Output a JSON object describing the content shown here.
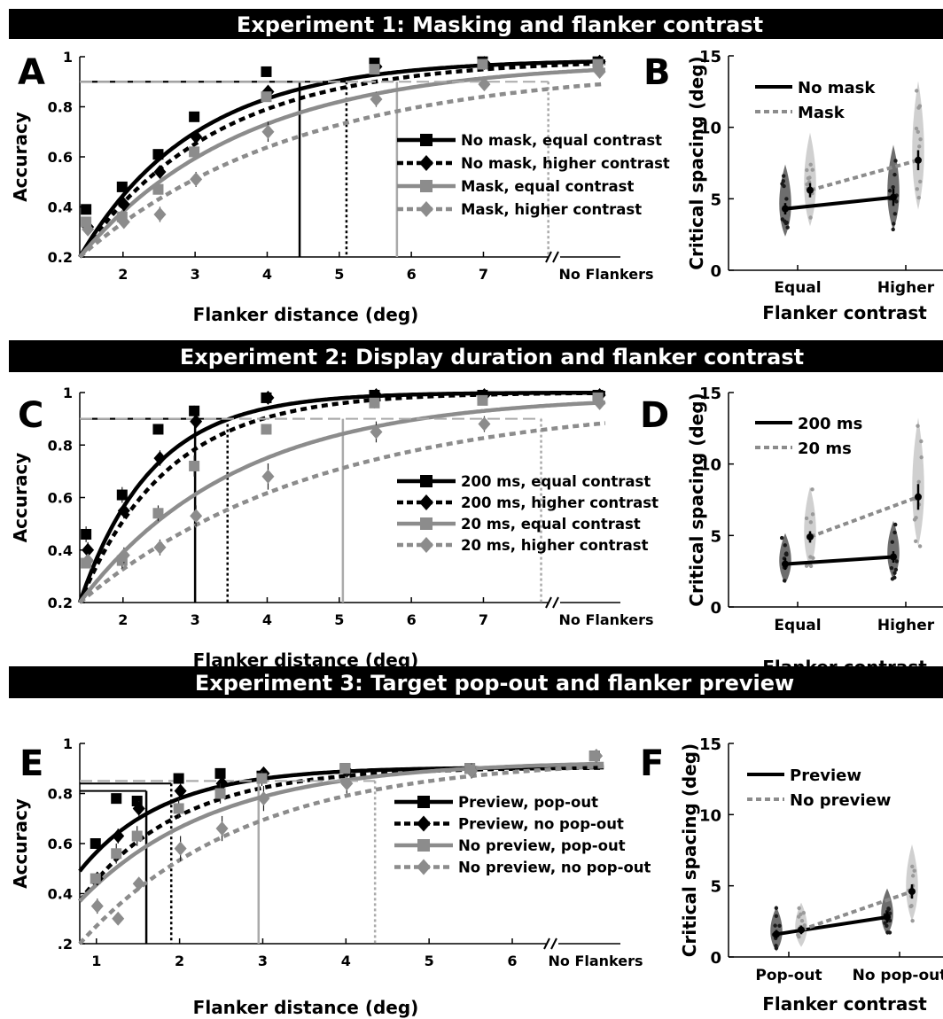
{
  "banners": [
    "Experiment 1: Masking and flanker contrast",
    "Experiment 2: Display duration and flanker contrast",
    "Experiment 3: Target pop-out and flanker preview"
  ],
  "colors": {
    "black": "#000000",
    "gray": "#8c8c8c",
    "gray_light": "#aaaaaa",
    "violin_dark": "#555555",
    "violin_light": "#c8c8c8"
  },
  "chart_data": [
    {
      "panel": "A",
      "type": "line",
      "xlabel": "Flanker distance (deg)",
      "ylabel": "Accuracy",
      "xlim": [
        1.4,
        8.9
      ],
      "ylim": [
        0.2,
        1
      ],
      "xticks": [
        2,
        3,
        4,
        5,
        6,
        7
      ],
      "no_flanker_x": 8.6,
      "no_flanker_label": "No Flankers",
      "yticks": [
        0.2,
        0.4,
        0.6,
        0.8,
        1
      ],
      "ytick_labels": [
        "0.2",
        "0.4",
        "0.6",
        "0.8",
        "1"
      ],
      "threshold": 0.9,
      "series": [
        {
          "name": "No mask, equal contrast",
          "color": "black",
          "dash": false,
          "marker": "square",
          "x": [
            1.5,
            2,
            2.5,
            3,
            4,
            5.5,
            7
          ],
          "y": [
            0.39,
            0.48,
            0.61,
            0.76,
            0.94,
            0.975,
            0.98
          ],
          "err": [
            0.02,
            0.02,
            0.02,
            0.02,
            0.01,
            0.01,
            0.01
          ],
          "nf": 0.98,
          "curve": {
            "a": 0.99,
            "y0": 0.2,
            "k": 0.62
          },
          "cs": 4.45
        },
        {
          "name": "No mask, higher contrast",
          "color": "black",
          "dash": true,
          "marker": "diamond",
          "x": [
            1.5,
            2,
            2.5,
            3,
            4,
            5.5,
            7
          ],
          "y": [
            0.32,
            0.41,
            0.54,
            0.68,
            0.86,
            0.96,
            0.975
          ],
          "err": [
            0.02,
            0.02,
            0.02,
            0.02,
            0.02,
            0.01,
            0.01
          ],
          "nf": 0.98,
          "curve": {
            "a": 0.99,
            "y0": 0.2,
            "k": 0.53
          },
          "cs": 5.1
        },
        {
          "name": "Mask, equal contrast",
          "color": "gray",
          "dash": false,
          "marker": "square",
          "x": [
            1.5,
            2,
            2.5,
            3,
            4,
            5.5,
            7
          ],
          "y": [
            0.34,
            0.36,
            0.47,
            0.62,
            0.84,
            0.95,
            0.97
          ],
          "err": [
            0.02,
            0.02,
            0.02,
            0.02,
            0.02,
            0.01,
            0.01
          ],
          "nf": 0.97,
          "curve": {
            "a": 0.98,
            "y0": 0.2,
            "k": 0.44
          },
          "cs": 5.8
        },
        {
          "name": "Mask, higher contrast",
          "color": "gray",
          "dash": true,
          "marker": "diamond",
          "x": [
            1.5,
            2,
            2.5,
            3,
            4,
            5.5,
            7
          ],
          "y": [
            0.31,
            0.34,
            0.37,
            0.51,
            0.7,
            0.83,
            0.89
          ],
          "err": [
            0.02,
            0.02,
            0.03,
            0.03,
            0.04,
            0.03,
            0.02
          ],
          "nf": 0.94,
          "curve": {
            "a": 0.96,
            "y0": 0.2,
            "k": 0.33
          },
          "cs": 7.9
        }
      ]
    },
    {
      "panel": "B",
      "type": "scatter",
      "xlabel": "Flanker contrast",
      "ylabel": "Critical spacing (deg)",
      "categories": [
        "Equal",
        "Higher"
      ],
      "ylim": [
        0,
        15
      ],
      "yticks": [
        0,
        5,
        10,
        15
      ],
      "series": [
        {
          "name": "No mask",
          "color": "black",
          "dash": false,
          "values": [
            4.3,
            5.1
          ],
          "err": [
            0.4,
            0.6
          ]
        },
        {
          "name": "Mask",
          "color": "gray",
          "dash": true,
          "values": [
            5.6,
            7.7
          ],
          "err": [
            0.5,
            0.7
          ]
        }
      ]
    },
    {
      "panel": "C",
      "type": "line",
      "xlabel": "Flanker distance (deg)",
      "ylabel": "Accuracy",
      "xlim": [
        1.4,
        8.9
      ],
      "ylim": [
        0.2,
        1
      ],
      "xticks": [
        2,
        3,
        4,
        5,
        6,
        7
      ],
      "no_flanker_x": 8.6,
      "no_flanker_label": "No Flankers",
      "yticks": [
        0.2,
        0.4,
        0.6,
        0.8,
        1
      ],
      "ytick_labels": [
        "0.2",
        "0.4",
        "0.6",
        "0.8",
        "1"
      ],
      "threshold": 0.9,
      "series": [
        {
          "name": "200 ms, equal contrast",
          "color": "black",
          "dash": false,
          "marker": "square",
          "x": [
            1.5,
            2,
            2.5,
            3,
            4,
            5.5,
            7
          ],
          "y": [
            0.46,
            0.61,
            0.86,
            0.93,
            0.98,
            0.99,
            0.99
          ],
          "err": [
            0.03,
            0.03,
            0.02,
            0.02,
            0.01,
            0.01,
            0.01
          ],
          "nf": 0.99,
          "curve": {
            "a": 1.0,
            "y0": 0.2,
            "k": 1.0
          },
          "cs": 3.0
        },
        {
          "name": "200 ms, higher contrast",
          "color": "black",
          "dash": true,
          "marker": "diamond",
          "x": [
            1.5,
            2,
            2.5,
            3,
            4,
            5.5,
            7
          ],
          "y": [
            0.4,
            0.55,
            0.75,
            0.89,
            0.98,
            0.99,
            0.99
          ],
          "err": [
            0.03,
            0.03,
            0.03,
            0.02,
            0.01,
            0.01,
            0.01
          ],
          "nf": 0.99,
          "curve": {
            "a": 1.0,
            "y0": 0.2,
            "k": 0.82
          },
          "cs": 3.45
        },
        {
          "name": "20 ms, equal contrast",
          "color": "gray",
          "dash": false,
          "marker": "square",
          "x": [
            1.5,
            2,
            2.5,
            3,
            4,
            5.5,
            7
          ],
          "y": [
            0.35,
            0.36,
            0.54,
            0.72,
            0.86,
            0.96,
            0.97
          ],
          "err": [
            0.02,
            0.03,
            0.03,
            0.04,
            0.02,
            0.02,
            0.01
          ],
          "nf": 0.98,
          "curve": {
            "a": 0.99,
            "y0": 0.2,
            "k": 0.46
          },
          "cs": 5.05
        },
        {
          "name": "20 ms, higher contrast",
          "color": "gray",
          "dash": true,
          "marker": "diamond",
          "x": [
            1.5,
            2,
            2.5,
            3,
            4,
            5.5,
            7
          ],
          "y": [
            0.36,
            0.38,
            0.41,
            0.53,
            0.68,
            0.85,
            0.88
          ],
          "err": [
            0.02,
            0.03,
            0.03,
            0.04,
            0.05,
            0.04,
            0.03
          ],
          "nf": 0.96,
          "curve": {
            "a": 0.97,
            "y0": 0.2,
            "k": 0.3
          },
          "cs": 7.8
        }
      ]
    },
    {
      "panel": "D",
      "type": "scatter",
      "xlabel": "Flanker contrast",
      "ylabel": "Critical spacing (deg)",
      "categories": [
        "Equal",
        "Higher"
      ],
      "ylim": [
        0,
        15
      ],
      "yticks": [
        0,
        5,
        10,
        15
      ],
      "series": [
        {
          "name": "200 ms",
          "color": "black",
          "dash": false,
          "values": [
            3.0,
            3.5
          ],
          "err": [
            0.4,
            0.4
          ]
        },
        {
          "name": "20 ms",
          "color": "gray",
          "dash": true,
          "values": [
            4.9,
            7.7
          ],
          "err": [
            0.4,
            0.9
          ]
        }
      ]
    },
    {
      "panel": "E",
      "type": "line",
      "xlabel": "Flanker distance (deg)",
      "ylabel": "Accuracy",
      "xlim": [
        0.8,
        7.3
      ],
      "ylim": [
        0.2,
        1
      ],
      "xticks": [
        1,
        2,
        3,
        4,
        5,
        6
      ],
      "no_flanker_x": 7.0,
      "no_flanker_label": "No Flankers",
      "yticks": [
        0.2,
        0.4,
        0.6,
        0.8,
        1
      ],
      "ytick_labels": [
        ".2",
        "0.4",
        "0.6",
        "0.8",
        "1"
      ],
      "threshold": 0.85,
      "series": [
        {
          "name": "Preview, pop-out",
          "color": "black",
          "dash": false,
          "marker": "square",
          "x": [
            1,
            1.25,
            1.5,
            2,
            2.5,
            3,
            4,
            5.5
          ],
          "y": [
            0.6,
            0.78,
            0.77,
            0.86,
            0.88,
            0.87,
            0.9,
            0.9
          ],
          "err": [
            0.02,
            0.02,
            0.02,
            0.02,
            0.01,
            0.02,
            0.02,
            0.02
          ],
          "nf": 0.95,
          "curve": {
            "a": 0.905,
            "y0": 0.49,
            "k": 1.0
          },
          "cs": 1.6,
          "thr": 0.81
        },
        {
          "name": "Preview, no pop-out",
          "color": "black",
          "dash": true,
          "marker": "diamond",
          "x": [
            1,
            1.25,
            1.5,
            2,
            2.5,
            3,
            4,
            5.5
          ],
          "y": [
            0.46,
            0.63,
            0.74,
            0.81,
            0.84,
            0.88,
            0.89,
            0.89
          ],
          "err": [
            0.02,
            0.03,
            0.03,
            0.03,
            0.02,
            0.02,
            0.02,
            0.02
          ],
          "nf": 0.95,
          "curve": {
            "a": 0.905,
            "y0": 0.37,
            "k": 0.85
          },
          "cs": 1.9,
          "thr": 0.84
        },
        {
          "name": "No preview, pop-out",
          "color": "gray",
          "dash": false,
          "marker": "square",
          "x": [
            1,
            1.25,
            1.5,
            2,
            2.5,
            3,
            4,
            5.5
          ],
          "y": [
            0.46,
            0.56,
            0.63,
            0.74,
            0.8,
            0.86,
            0.9,
            0.9
          ],
          "err": [
            0.02,
            0.04,
            0.04,
            0.04,
            0.04,
            0.03,
            0.02,
            0.02
          ],
          "nf": 0.95,
          "curve": {
            "a": 0.93,
            "y0": 0.37,
            "k": 0.62
          },
          "cs": 2.95,
          "thr": 0.85
        },
        {
          "name": "No preview, no pop-out",
          "color": "gray",
          "dash": true,
          "marker": "diamond",
          "x": [
            1,
            1.25,
            1.5,
            2,
            2.5,
            3,
            4,
            5.5
          ],
          "y": [
            0.35,
            0.3,
            0.44,
            0.58,
            0.66,
            0.78,
            0.84,
            0.89
          ],
          "err": [
            0.03,
            0.02,
            0.02,
            0.05,
            0.05,
            0.05,
            0.04,
            0.03
          ],
          "nf": 0.95,
          "curve": {
            "a": 0.94,
            "y0": 0.2,
            "k": 0.5
          },
          "cs": 4.35,
          "thr": 0.85
        }
      ]
    },
    {
      "panel": "F",
      "type": "scatter",
      "xlabel": "Flanker contrast",
      "ylabel": "Critical spacing (deg)",
      "categories": [
        "Pop-out",
        "No pop-out"
      ],
      "ylim": [
        0,
        15
      ],
      "yticks": [
        0,
        5,
        10,
        15
      ],
      "series": [
        {
          "name": "Preview",
          "color": "black",
          "dash": false,
          "values": [
            1.6,
            2.8
          ],
          "err": [
            0.3,
            0.4
          ]
        },
        {
          "name": "No preview",
          "color": "gray",
          "dash": true,
          "values": [
            1.9,
            4.6
          ],
          "err": [
            0.3,
            0.5
          ]
        }
      ]
    }
  ]
}
